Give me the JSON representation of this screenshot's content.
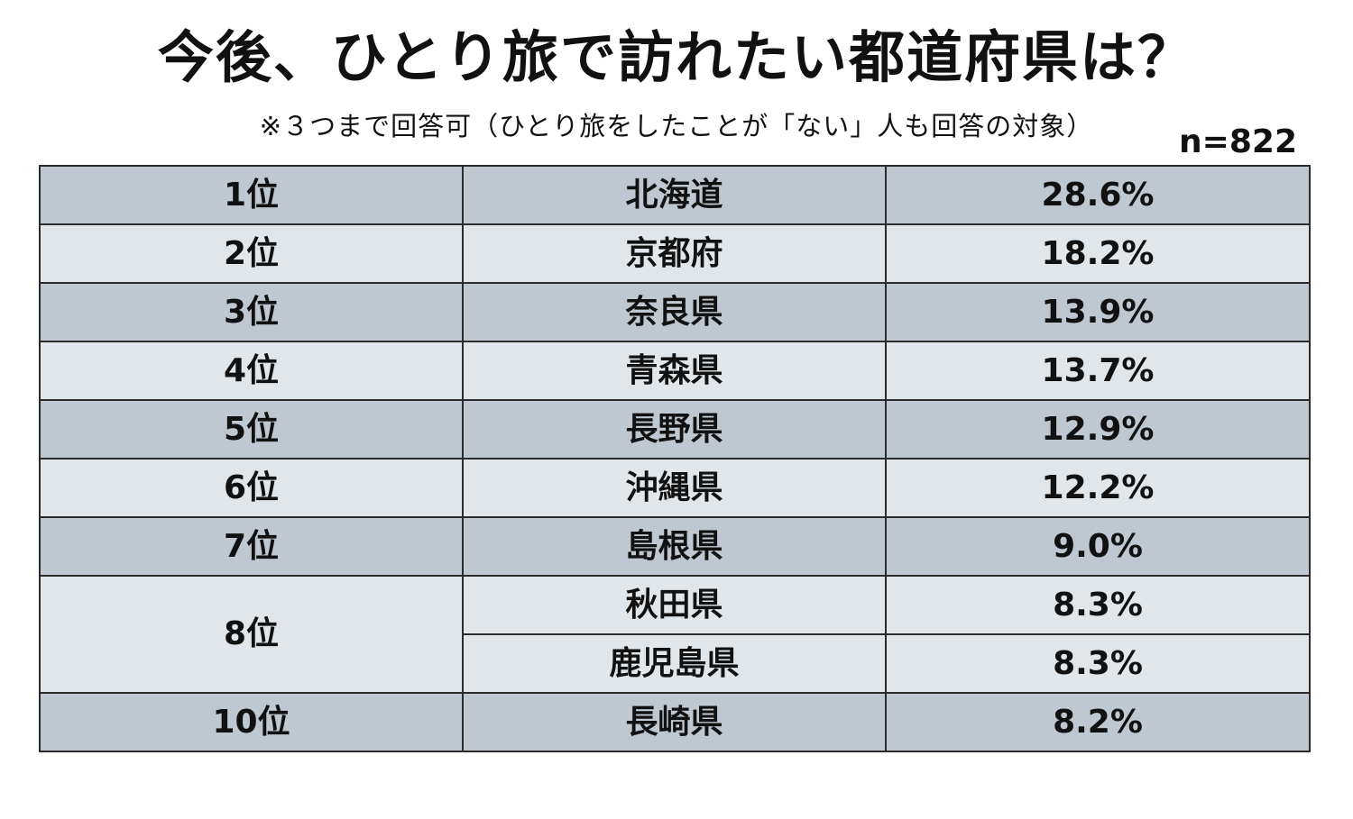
{
  "title": "今後、ひとり旅で訪れたい都道府県は？",
  "subtitle": "※３つまで回答可（ひとり旅をしたことが「ない」人も回答の対象）",
  "sample_size": "n=822",
  "colors": {
    "row_dark": "#bfc8d0",
    "row_light": "#e1e6ea",
    "border": "#2b2b2b"
  },
  "chart_data": {
    "type": "table",
    "title": "今後、ひとり旅で訪れたい都道府県は？",
    "subtitle": "※３つまで回答可（ひとり旅をしたことが「ない」人も回答の対象）",
    "rows": [
      {
        "rank": "1位",
        "prefecture": "北海道",
        "percent": "28.6%"
      },
      {
        "rank": "2位",
        "prefecture": "京都府",
        "percent": "18.2%"
      },
      {
        "rank": "3位",
        "prefecture": "奈良県",
        "percent": "13.9%"
      },
      {
        "rank": "4位",
        "prefecture": "青森県",
        "percent": "13.7%"
      },
      {
        "rank": "5位",
        "prefecture": "長野県",
        "percent": "12.9%"
      },
      {
        "rank": "6位",
        "prefecture": "沖縄県",
        "percent": "12.2%"
      },
      {
        "rank": "7位",
        "prefecture": "島根県",
        "percent": "9.0%"
      },
      {
        "rank": "8位",
        "prefecture": "秋田県",
        "percent": "8.3%"
      },
      {
        "rank": "8位",
        "prefecture": "鹿児島県",
        "percent": "8.3%"
      },
      {
        "rank": "10位",
        "prefecture": "長崎県",
        "percent": "8.2%"
      }
    ]
  }
}
